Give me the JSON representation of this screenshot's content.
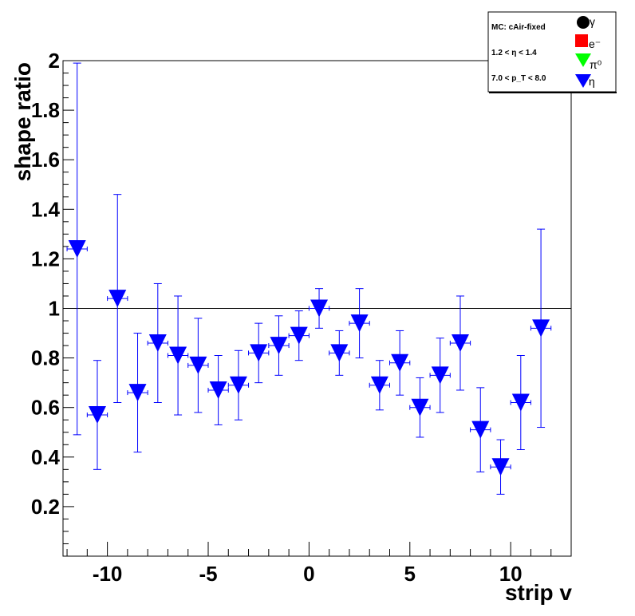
{
  "chart_data": {
    "type": "scatter",
    "xlabel": "strip v",
    "ylabel": "shape ratio",
    "xlim": [
      -12.2,
      13
    ],
    "ylim": [
      0,
      2
    ],
    "x_ticks": [
      -10,
      -5,
      0,
      5,
      10
    ],
    "y_ticks": [
      0.2,
      0.4,
      0.6,
      0.8,
      1,
      1.2,
      1.4,
      1.6,
      1.8,
      2
    ],
    "x_tick_labels": [
      "-10",
      "-5",
      "0",
      "5",
      "10"
    ],
    "y_tick_labels": [
      "0.2",
      "0.4",
      "0.6",
      "0.8",
      "1",
      "1.2",
      "1.4",
      "1.6",
      "1.8",
      "2"
    ],
    "reference_line_y": 1,
    "grid": false,
    "legend": {
      "placement": "top-right",
      "info_lines": [
        "MC: cAir-fixed",
        "1.2 < η < 1.4",
        "7.0 < p_T < 8.0"
      ],
      "entries": [
        {
          "label": "γ",
          "marker": "circle",
          "color": "#000000"
        },
        {
          "label": "e⁻",
          "marker": "square",
          "color": "#ff0000"
        },
        {
          "label": "π⁰",
          "marker": "triangle-down",
          "color": "#00ff00"
        },
        {
          "label": "η",
          "marker": "triangle-down",
          "color": "#0000ff"
        }
      ]
    },
    "series": [
      {
        "name": "η",
        "color": "#0000ff",
        "marker": "triangle-down",
        "x_err": 0.5,
        "points": [
          {
            "x": -11.5,
            "y": 1.24,
            "yerr": 0.75
          },
          {
            "x": -10.5,
            "y": 0.57,
            "yerr": 0.22
          },
          {
            "x": -9.5,
            "y": 1.04,
            "yerr": 0.42
          },
          {
            "x": -8.5,
            "y": 0.66,
            "yerr": 0.24
          },
          {
            "x": -7.5,
            "y": 0.86,
            "yerr": 0.24
          },
          {
            "x": -6.5,
            "y": 0.81,
            "yerr": 0.24
          },
          {
            "x": -5.5,
            "y": 0.77,
            "yerr": 0.19
          },
          {
            "x": -4.5,
            "y": 0.67,
            "yerr": 0.14
          },
          {
            "x": -3.5,
            "y": 0.69,
            "yerr": 0.14
          },
          {
            "x": -2.5,
            "y": 0.82,
            "yerr": 0.12
          },
          {
            "x": -1.5,
            "y": 0.85,
            "yerr": 0.12
          },
          {
            "x": -0.5,
            "y": 0.89,
            "yerr": 0.1
          },
          {
            "x": 0.5,
            "y": 1.0,
            "yerr": 0.08
          },
          {
            "x": 1.5,
            "y": 0.82,
            "yerr": 0.09
          },
          {
            "x": 2.5,
            "y": 0.94,
            "yerr": 0.14
          },
          {
            "x": 3.5,
            "y": 0.69,
            "yerr": 0.1
          },
          {
            "x": 4.5,
            "y": 0.78,
            "yerr": 0.13
          },
          {
            "x": 5.5,
            "y": 0.6,
            "yerr": 0.12
          },
          {
            "x": 6.5,
            "y": 0.73,
            "yerr": 0.15
          },
          {
            "x": 7.5,
            "y": 0.86,
            "yerr": 0.19
          },
          {
            "x": 8.5,
            "y": 0.51,
            "yerr": 0.17
          },
          {
            "x": 9.5,
            "y": 0.36,
            "yerr": 0.11
          },
          {
            "x": 10.5,
            "y": 0.62,
            "yerr": 0.19
          },
          {
            "x": 11.5,
            "y": 0.92,
            "yerr": 0.4
          }
        ]
      }
    ]
  }
}
